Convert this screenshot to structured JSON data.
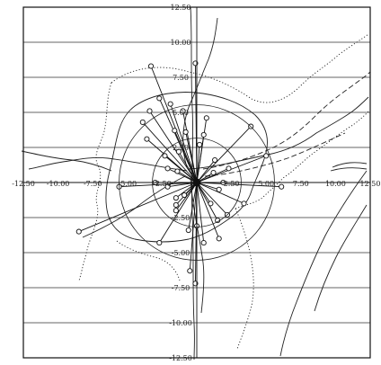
{
  "chart_data": {
    "type": "scatter",
    "title": "",
    "xlabel": "",
    "ylabel": "",
    "xlim": [
      -12.5,
      12.5
    ],
    "ylim": [
      -12.5,
      12.5
    ],
    "grid": "horizontal",
    "origin": [
      0,
      0
    ],
    "x_ticks": [
      "-12.50",
      "-10.00",
      "-7.50",
      "-5.00",
      "-2.50",
      "2.50",
      "5.00",
      "7.50",
      "10.00",
      "12.50"
    ],
    "x_tick_values": [
      -12.5,
      -10,
      -7.5,
      -5,
      -2.5,
      2.5,
      5,
      7.5,
      10,
      12.5
    ],
    "y_ticks": [
      "12.50",
      "10.00",
      "7.50",
      "5.00",
      "2.50",
      "-2.50",
      "-5.00",
      "-7.50",
      "-10.00",
      "-12.50"
    ],
    "y_tick_values": [
      12.5,
      10,
      7.5,
      5,
      2.5,
      -2.5,
      -5,
      -7.5,
      -10,
      -12.5
    ],
    "range_circles": [
      3.2,
      5.6
    ],
    "points": [
      {
        "x": -3.3,
        "y": 8.3
      },
      {
        "x": -0.1,
        "y": 8.5
      },
      {
        "x": -2.7,
        "y": 6.0
      },
      {
        "x": -1.9,
        "y": 5.6
      },
      {
        "x": -3.4,
        "y": 5.1
      },
      {
        "x": -1.0,
        "y": 5.1
      },
      {
        "x": 0.7,
        "y": 4.6
      },
      {
        "x": 3.9,
        "y": 4.0
      },
      {
        "x": -3.9,
        "y": 4.3
      },
      {
        "x": -3.6,
        "y": 3.1
      },
      {
        "x": -1.6,
        "y": 3.7
      },
      {
        "x": -0.8,
        "y": 3.6
      },
      {
        "x": -1.3,
        "y": 2.2
      },
      {
        "x": -2.3,
        "y": 1.9
      },
      {
        "x": 0.2,
        "y": 2.7
      },
      {
        "x": 0.5,
        "y": 3.4
      },
      {
        "x": 1.3,
        "y": 1.6
      },
      {
        "x": -2.1,
        "y": 1.0
      },
      {
        "x": -1.4,
        "y": 0.8
      },
      {
        "x": -3.0,
        "y": 0.0
      },
      {
        "x": -5.6,
        "y": -0.3
      },
      {
        "x": 2.3,
        "y": 1.0
      },
      {
        "x": 5.0,
        "y": 1.9
      },
      {
        "x": 1.9,
        "y": 0.0
      },
      {
        "x": -2.1,
        "y": -0.3
      },
      {
        "x": -1.5,
        "y": -1.1
      },
      {
        "x": -0.9,
        "y": -0.9
      },
      {
        "x": -1.5,
        "y": -2.0
      },
      {
        "x": 1.6,
        "y": -0.5
      },
      {
        "x": 1.0,
        "y": -1.5
      },
      {
        "x": 2.2,
        "y": -2.3
      },
      {
        "x": 1.5,
        "y": -2.7
      },
      {
        "x": 3.4,
        "y": -1.5
      },
      {
        "x": -2.7,
        "y": -4.3
      },
      {
        "x": 0.0,
        "y": -3.1
      },
      {
        "x": 0.5,
        "y": -4.3
      },
      {
        "x": 1.6,
        "y": -4.0
      },
      {
        "x": -0.6,
        "y": -3.4
      },
      {
        "x": -0.5,
        "y": -6.3
      },
      {
        "x": -0.1,
        "y": -7.2
      },
      {
        "x": -8.5,
        "y": -3.5
      },
      {
        "x": 6.1,
        "y": -0.3
      },
      {
        "x": -1.5,
        "y": -1.6
      },
      {
        "x": 1.2,
        "y": 0.7
      }
    ]
  }
}
